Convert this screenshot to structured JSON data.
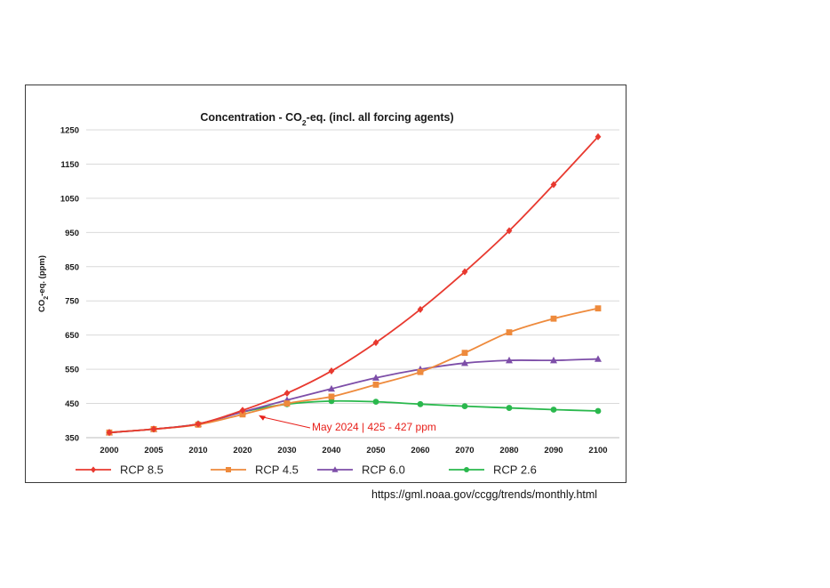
{
  "chart_data": {
    "type": "line",
    "title": "Concentration - CO₂-eq. (incl. all forcing agents)",
    "title_parts": {
      "before": "Concentration - CO",
      "sub": "2",
      "after": "-eq. (incl. all forcing agents)"
    },
    "ylabel": "CO₂-eq. (ppm)",
    "ylabel_parts": {
      "before": "CO",
      "sub": "2",
      "after": "-eq. (ppm)"
    },
    "xlabel": "",
    "categories": [
      "2000",
      "2005",
      "2010",
      "2020",
      "2030",
      "2040",
      "2050",
      "2060",
      "2070",
      "2080",
      "2090",
      "2100"
    ],
    "y_ticks": [
      350,
      450,
      550,
      650,
      750,
      850,
      950,
      1050,
      1150,
      1250
    ],
    "ylim": [
      350,
      1250
    ],
    "grid": true,
    "legend_position": "bottom",
    "series": [
      {
        "name": "RCP 8.5",
        "color": "#e8392f",
        "marker": "diamond",
        "values": [
          365,
          375,
          390,
          430,
          480,
          545,
          628,
          725,
          835,
          955,
          1090,
          1230
        ]
      },
      {
        "name": "RCP 4.5",
        "color": "#ee8a3c",
        "marker": "square",
        "values": [
          365,
          375,
          388,
          418,
          450,
          470,
          505,
          542,
          598,
          658,
          698,
          728
        ]
      },
      {
        "name": "RCP 6.0",
        "color": "#7d4ea8",
        "marker": "triangle",
        "values": [
          365,
          375,
          390,
          425,
          460,
          493,
          525,
          550,
          568,
          576,
          576,
          580
        ]
      },
      {
        "name": "RCP 2.6",
        "color": "#2ab84d",
        "marker": "circle",
        "values": [
          365,
          375,
          390,
          425,
          448,
          457,
          455,
          448,
          442,
          437,
          432,
          428
        ]
      }
    ],
    "annotation": {
      "text": "May 2024 | 425 - 427 ppm",
      "color": "#e8201b",
      "x": "2020",
      "y": 426
    }
  },
  "source_url": "https://gml.noaa.gov/ccgg/trends/monthly.html"
}
